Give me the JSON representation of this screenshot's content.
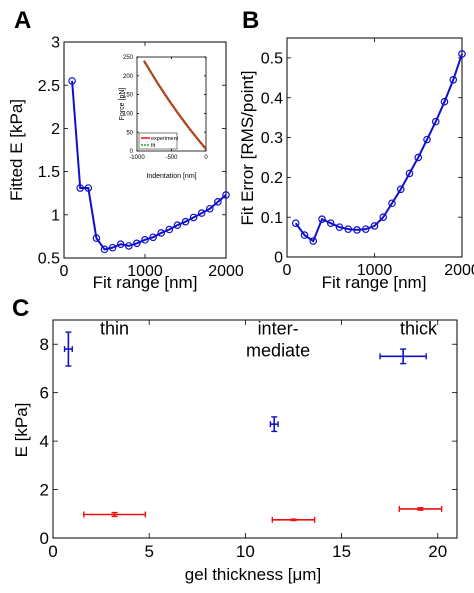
{
  "chart_data": [
    {
      "panel": "A",
      "type": "line",
      "xlabel": "Fit range [nm]",
      "ylabel": "Fitted E [kPa]",
      "xlim": [
        0,
        2000
      ],
      "ylim": [
        0.5,
        3
      ],
      "xticks": [
        0,
        1000,
        2000
      ],
      "xtick_labels": [
        "0",
        "1000",
        "2000"
      ],
      "yticks": [
        0.5,
        1,
        1.5,
        2,
        2.5,
        3
      ],
      "ytick_labels": [
        "0.5",
        "1",
        "1.5",
        "2",
        "2.5",
        "3"
      ],
      "grid": false,
      "color": "#1010cc",
      "series": [
        {
          "x": [
            100,
            200,
            300,
            400,
            500,
            600,
            700,
            800,
            900,
            1000,
            1100,
            1200,
            1300,
            1400,
            1500,
            1600,
            1700,
            1800,
            1900,
            2000
          ],
          "y": [
            2.55,
            1.31,
            1.31,
            0.73,
            0.6,
            0.62,
            0.66,
            0.64,
            0.67,
            0.71,
            0.74,
            0.79,
            0.83,
            0.88,
            0.92,
            0.97,
            1.02,
            1.07,
            1.15,
            1.23
          ]
        }
      ],
      "inset": {
        "type": "line",
        "xlabel": "Indentation [nm]",
        "ylabel": "Force [pN]",
        "xlim": [
          -1000,
          0
        ],
        "ylim": [
          0,
          250
        ],
        "xticks": [
          -1000,
          -500,
          0
        ],
        "xtick_labels": [
          "-1000",
          "-500",
          "0"
        ],
        "yticks": [
          0,
          50,
          100,
          150,
          200,
          250
        ],
        "ytick_labels": [
          "0",
          "50",
          "100",
          "150",
          "200",
          "250"
        ],
        "legend": [
          "experiment",
          "fit"
        ],
        "legend_position": "bottom-left",
        "series_colors": [
          "#ee1111",
          "#22aa22"
        ],
        "curve": {
          "x": [
            -900,
            -800,
            -700,
            -600,
            -500,
            -400,
            -300,
            -200,
            -100,
            0
          ],
          "y": [
            240,
            210,
            180,
            152,
            125,
            99,
            74,
            50,
            27,
            5
          ]
        }
      }
    },
    {
      "panel": "B",
      "type": "line",
      "xlabel": "Fit range [nm]",
      "ylabel": "Fit Error [RMS/point]",
      "xlim": [
        0,
        2000
      ],
      "ylim": [
        0,
        0.55
      ],
      "xticks": [
        0,
        1000,
        2000
      ],
      "xtick_labels": [
        "0",
        "1000",
        "2000"
      ],
      "yticks": [
        0,
        0.1,
        0.2,
        0.3,
        0.4,
        0.5
      ],
      "ytick_labels": [
        "0",
        "0.1",
        "0.2",
        "0.3",
        "0.4",
        "0.5"
      ],
      "grid": false,
      "color": "#1010cc",
      "series": [
        {
          "x": [
            100,
            200,
            300,
            400,
            500,
            600,
            700,
            800,
            900,
            1000,
            1100,
            1200,
            1300,
            1400,
            1500,
            1600,
            1700,
            1800,
            1900,
            2000
          ],
          "y": [
            0.085,
            0.055,
            0.04,
            0.095,
            0.085,
            0.075,
            0.07,
            0.068,
            0.07,
            0.078,
            0.1,
            0.135,
            0.17,
            0.21,
            0.25,
            0.295,
            0.34,
            0.39,
            0.445,
            0.51
          ]
        }
      ]
    },
    {
      "panel": "C",
      "type": "scatter",
      "xlabel": "gel thickness [μm]",
      "ylabel": "E [kPa]",
      "xlim": [
        0,
        21
      ],
      "ylim": [
        0,
        9
      ],
      "xticks": [
        0,
        5,
        10,
        15,
        20
      ],
      "xtick_labels": [
        "0",
        "5",
        "10",
        "15",
        "20"
      ],
      "yticks": [
        0,
        2,
        4,
        6,
        8
      ],
      "ytick_labels": [
        "0",
        "2",
        "4",
        "6",
        "8"
      ],
      "grid": false,
      "annotations": [
        {
          "text": "thin",
          "x": 3.2,
          "y": 8.4
        },
        {
          "text": "inter-",
          "x": 11.7,
          "y": 8.4
        },
        {
          "text": "mediate",
          "x": 11.7,
          "y": 7.5
        },
        {
          "text": "thick",
          "x": 19.0,
          "y": 8.4
        }
      ],
      "series": [
        {
          "color": "#1010cc",
          "points": [
            {
              "x": 0.8,
              "y": 7.8,
              "xerr": 0.2,
              "yerr": 0.7
            },
            {
              "x": 11.5,
              "y": 4.7,
              "xerr": 0.2,
              "yerr": 0.3
            },
            {
              "x": 18.2,
              "y": 7.5,
              "xerr": 1.2,
              "yerr": 0.3
            }
          ]
        },
        {
          "color": "#ee1111",
          "points": [
            {
              "x": 3.2,
              "y": 0.97,
              "xerr": 1.6,
              "yerr": 0.08
            },
            {
              "x": 12.5,
              "y": 0.75,
              "xerr": 1.1,
              "yerr": 0.03
            },
            {
              "x": 19.1,
              "y": 1.2,
              "xerr": 1.1,
              "yerr": 0.05
            }
          ]
        }
      ]
    }
  ],
  "panels": {
    "a": "A",
    "b": "B",
    "c": "C"
  }
}
